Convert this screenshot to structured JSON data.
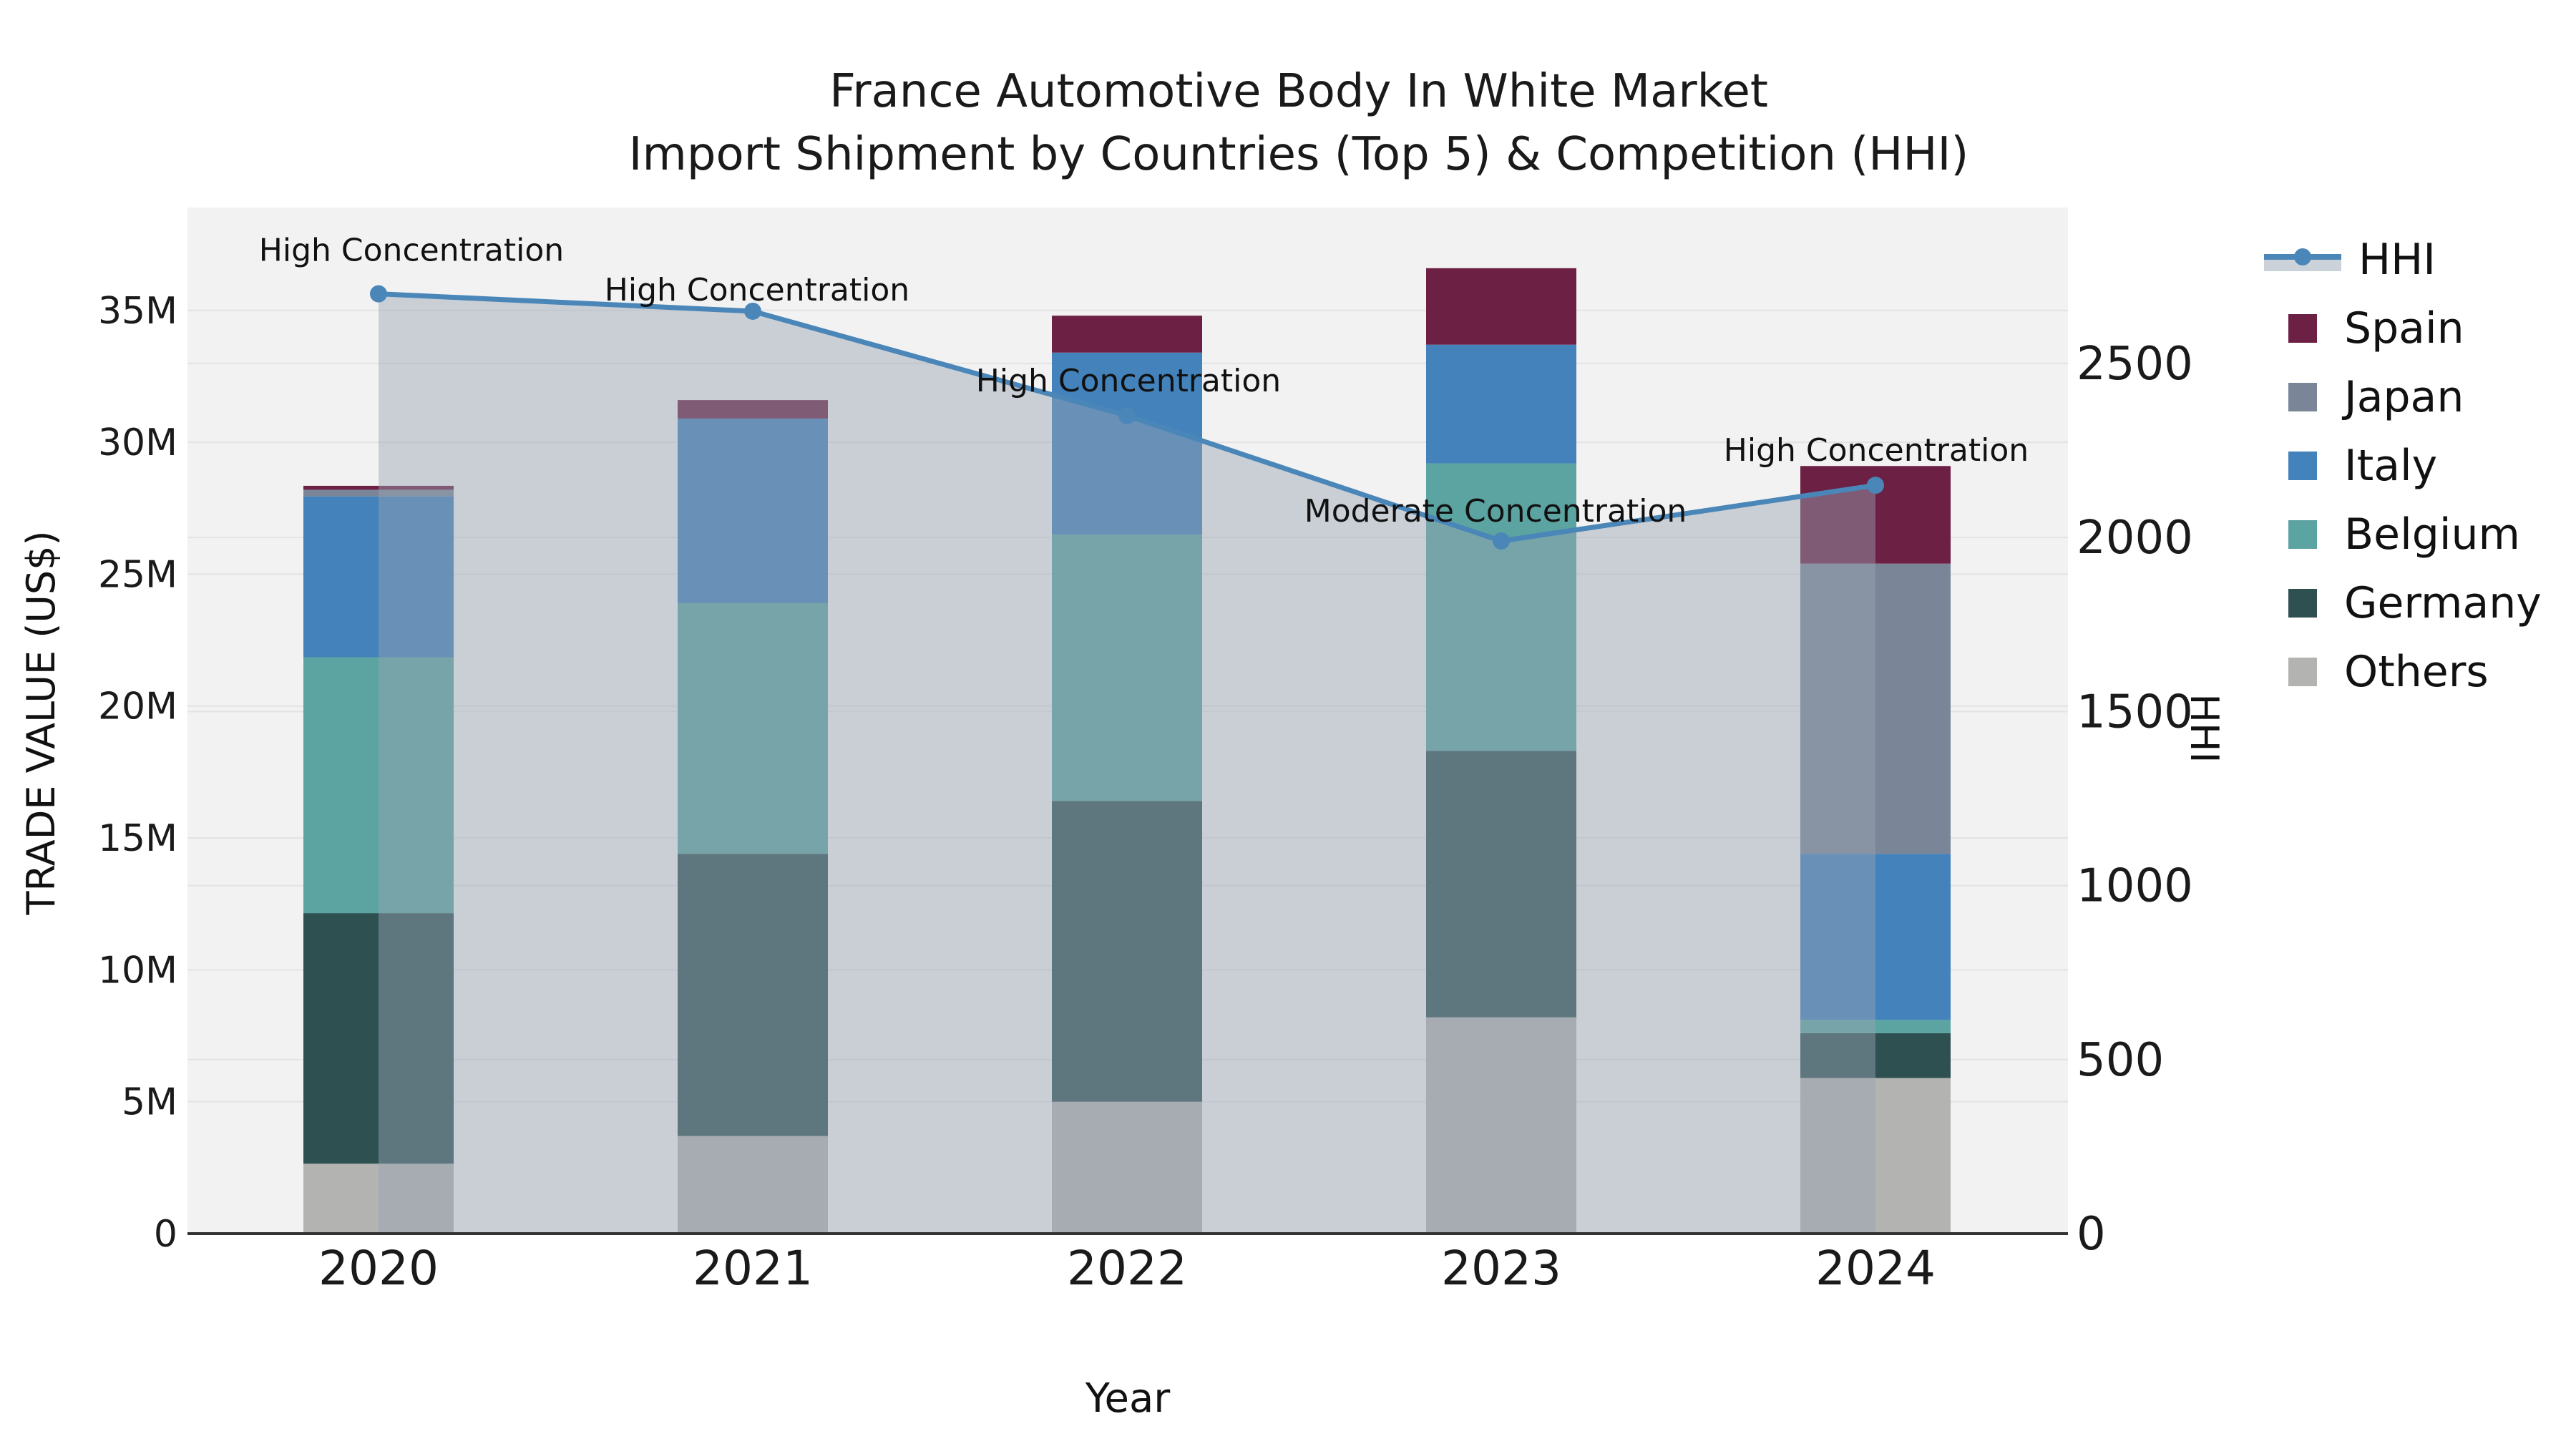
{
  "title": {
    "line1": "France Automotive Body In White Market",
    "line2": "Import Shipment by Countries (Top 5) & Competition (HHI)"
  },
  "axes": {
    "x_label": "Year",
    "y_left_label": "TRADE VALUE (US$)",
    "y_right_label": "HHI",
    "y_left_ticks": [
      "0",
      "5M",
      "10M",
      "15M",
      "20M",
      "25M",
      "30M",
      "35M"
    ],
    "y_left_tick_values_millions": [
      0,
      5,
      10,
      15,
      20,
      25,
      30,
      35
    ],
    "y_right_ticks": [
      "0",
      "500",
      "1000",
      "1500",
      "2000",
      "2500"
    ],
    "y_right_tick_values": [
      0,
      500,
      1000,
      1500,
      2000,
      2500
    ]
  },
  "legend": {
    "items": [
      {
        "label": "HHI",
        "type": "line",
        "color": "#4a86b8"
      },
      {
        "label": "Spain",
        "type": "box",
        "color": "#6c2044"
      },
      {
        "label": "Japan",
        "type": "box",
        "color": "#7a8698"
      },
      {
        "label": "Italy",
        "type": "box",
        "color": "#4382ba"
      },
      {
        "label": "Belgium",
        "type": "box",
        "color": "#5ca4a1"
      },
      {
        "label": "Germany",
        "type": "box",
        "color": "#2e5051"
      },
      {
        "label": "Others",
        "type": "box",
        "color": "#b3b3b2"
      }
    ]
  },
  "chart_data": {
    "type": "bar+line",
    "title": "France Automotive Body In White Market — Import Shipment by Countries (Top 5) & Competition (HHI)",
    "categories": [
      "2020",
      "2021",
      "2022",
      "2023",
      "2024"
    ],
    "units_left": "million US$",
    "stack_order_bottom_to_top": [
      "Others",
      "Germany",
      "Belgium",
      "Italy",
      "Japan",
      "Spain"
    ],
    "series": [
      {
        "name": "Spain",
        "color": "#6c2044",
        "values": [
          0.15,
          0.7,
          1.4,
          2.9,
          3.7
        ]
      },
      {
        "name": "Japan",
        "color": "#7a8698",
        "values": [
          0.25,
          0.0,
          0.0,
          0.0,
          11.0
        ]
      },
      {
        "name": "Italy",
        "color": "#4382ba",
        "values": [
          6.1,
          7.0,
          6.9,
          4.5,
          6.3
        ]
      },
      {
        "name": "Belgium",
        "color": "#5ca4a1",
        "values": [
          9.7,
          9.5,
          10.1,
          10.9,
          0.5
        ]
      },
      {
        "name": "Germany",
        "color": "#2e5051",
        "values": [
          9.5,
          10.7,
          11.4,
          10.1,
          1.7
        ]
      },
      {
        "name": "Others",
        "color": "#b3b3b2",
        "values": [
          2.65,
          3.7,
          5.0,
          8.2,
          5.9
        ]
      }
    ],
    "bar_totals_millions": [
      28.35,
      31.6,
      34.8,
      36.6,
      29.1
    ],
    "line_series": {
      "name": "HHI",
      "color": "#4a86b8",
      "area_fill": "rgba(154,165,180,0.45)",
      "values": [
        2700,
        2650,
        2350,
        1990,
        2150
      ],
      "annotations": [
        "High Concentration",
        "High Concentration",
        "High Concentration",
        "Moderate Concentration",
        "High Concentration"
      ]
    },
    "xlabel": "Year",
    "ylabel_left": "TRADE VALUE (US$)",
    "ylabel_right": "HHI",
    "ylim_left_millions": [
      0,
      38.9
    ],
    "ylim_right": [
      0,
      2948
    ],
    "grid": true,
    "legend_position": "right",
    "plot_background": "#f2f2f2",
    "gridline_color": "#e3e3e5",
    "baseline_color": "#333333"
  }
}
